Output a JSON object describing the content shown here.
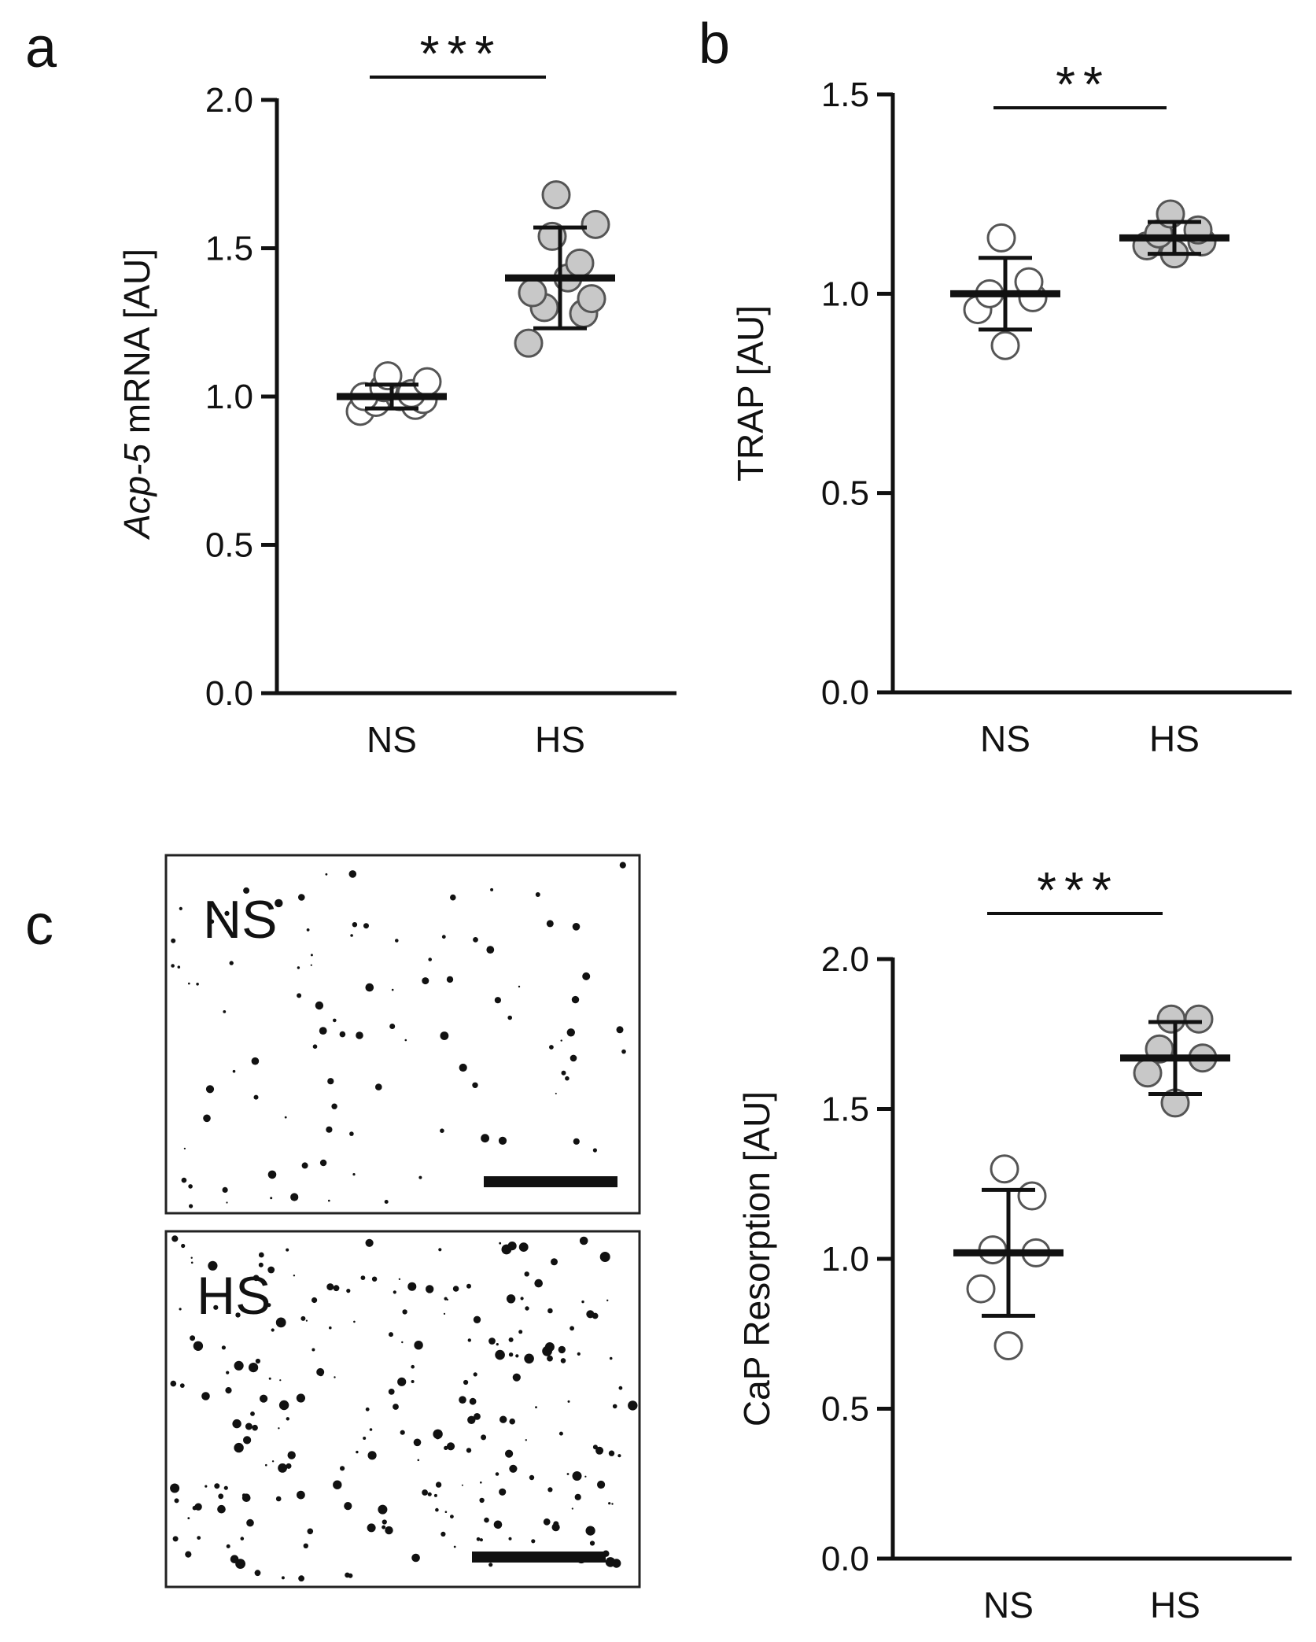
{
  "panels": {
    "a": {
      "letter": "a"
    },
    "b": {
      "letter": "b"
    },
    "c": {
      "letter": "c"
    }
  },
  "micrographs": {
    "ns_label": "NS",
    "hs_label": "HS"
  },
  "colors": {
    "ns_fill": "#ffffff",
    "hs_fill": "#c8c8c8",
    "marker_stroke": "#555555",
    "axis": "#111111"
  },
  "chart_data": [
    {
      "id": "a",
      "type": "scatter",
      "title": "",
      "xlabel": "",
      "ylabel_italic": "Acp-5",
      "ylabel_rest": " mRNA [AU]",
      "ylim": [
        0,
        2.0
      ],
      "yticks": [
        0.0,
        0.5,
        1.0,
        1.5,
        2.0
      ],
      "ytick_labels": [
        "0.0",
        "0.5",
        "1.0",
        "1.5",
        "2.0"
      ],
      "categories": [
        "NS",
        "HS"
      ],
      "significance": "***",
      "series": [
        {
          "category": "NS",
          "points": [
            0.95,
            0.97,
            0.98,
            0.99,
            1.0,
            1.0,
            1.01,
            1.03,
            1.05,
            1.07
          ],
          "mean": 1.0,
          "error": 0.04,
          "fill": "#ffffff"
        },
        {
          "category": "HS",
          "points": [
            1.18,
            1.28,
            1.3,
            1.33,
            1.35,
            1.4,
            1.45,
            1.54,
            1.58,
            1.68
          ],
          "mean": 1.4,
          "error": 0.17,
          "fill": "#c8c8c8"
        }
      ]
    },
    {
      "id": "b",
      "type": "scatter",
      "title": "",
      "xlabel": "",
      "ylabel": "TRAP [AU]",
      "ylim": [
        0,
        1.5
      ],
      "yticks": [
        0.0,
        0.5,
        1.0,
        1.5
      ],
      "ytick_labels": [
        "0.0",
        "0.5",
        "1.0",
        "1.5"
      ],
      "categories": [
        "NS",
        "HS"
      ],
      "significance": "**",
      "series": [
        {
          "category": "NS",
          "points": [
            0.87,
            0.96,
            0.99,
            1.0,
            1.03,
            1.14
          ],
          "mean": 1.0,
          "error": 0.09,
          "fill": "#ffffff"
        },
        {
          "category": "HS",
          "points": [
            1.1,
            1.12,
            1.13,
            1.15,
            1.16,
            1.2
          ],
          "mean": 1.14,
          "error": 0.04,
          "fill": "#c8c8c8"
        }
      ]
    },
    {
      "id": "c",
      "type": "scatter",
      "title": "",
      "xlabel": "",
      "ylabel": "CaP Resorption [AU]",
      "ylim": [
        0,
        2.0
      ],
      "yticks": [
        0.0,
        0.5,
        1.0,
        1.5,
        2.0
      ],
      "ytick_labels": [
        "0.0",
        "0.5",
        "1.0",
        "1.5",
        "2.0"
      ],
      "categories": [
        "NS",
        "HS"
      ],
      "significance": "***",
      "series": [
        {
          "category": "NS",
          "points": [
            0.71,
            0.9,
            1.02,
            1.03,
            1.21,
            1.3
          ],
          "mean": 1.02,
          "error": 0.21,
          "fill": "#ffffff"
        },
        {
          "category": "HS",
          "points": [
            1.52,
            1.62,
            1.67,
            1.7,
            1.8,
            1.8
          ],
          "mean": 1.67,
          "error": 0.12,
          "fill": "#c8c8c8"
        }
      ]
    }
  ]
}
